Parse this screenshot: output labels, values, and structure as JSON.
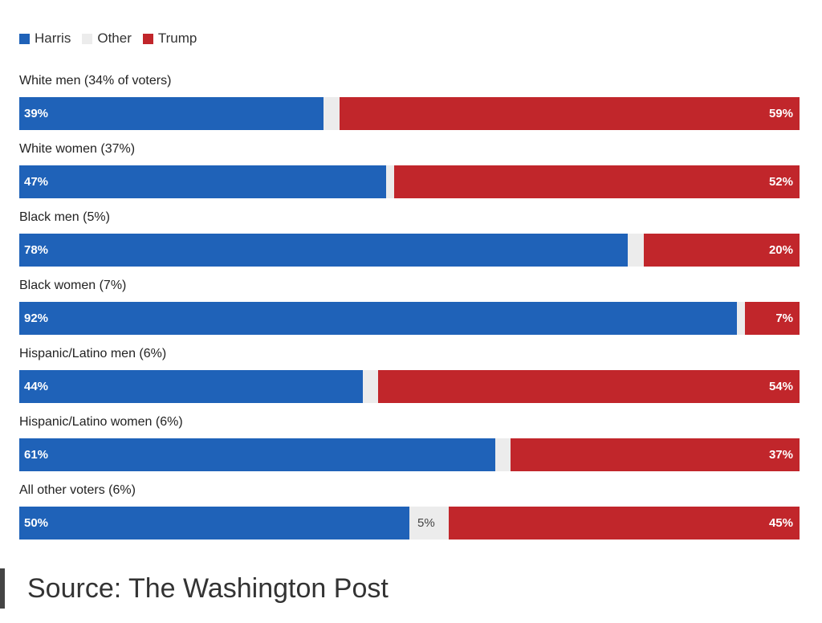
{
  "chart_data": {
    "type": "bar",
    "orientation": "horizontal-stacked",
    "legend": [
      {
        "name": "Harris",
        "color": "#1f62b8"
      },
      {
        "name": "Other",
        "color": "#ececec"
      },
      {
        "name": "Trump",
        "color": "#c1262b"
      }
    ],
    "categories": [
      "White men (34% of voters)",
      "White women (37%)",
      "Black men (5%)",
      "Black women (7%)",
      "Hispanic/Latino men (6%)",
      "Hispanic/Latino women (6%)",
      "All other voters (6%)"
    ],
    "series": [
      {
        "name": "Harris",
        "values": [
          39,
          47,
          78,
          92,
          44,
          61,
          50
        ],
        "labels": [
          "39%",
          "47%",
          "78%",
          "92%",
          "44%",
          "61%",
          "50%"
        ]
      },
      {
        "name": "Other",
        "values": [
          2,
          1,
          2,
          1,
          2,
          2,
          5
        ],
        "labels": [
          "",
          "",
          "",
          "",
          "",
          "",
          "5%"
        ]
      },
      {
        "name": "Trump",
        "values": [
          59,
          52,
          20,
          7,
          54,
          37,
          45
        ],
        "labels": [
          "59%",
          "52%",
          "20%",
          "7%",
          "54%",
          "37%",
          "45%"
        ]
      }
    ],
    "xlim": [
      0,
      100
    ]
  },
  "source": "Source: The Washington Post"
}
